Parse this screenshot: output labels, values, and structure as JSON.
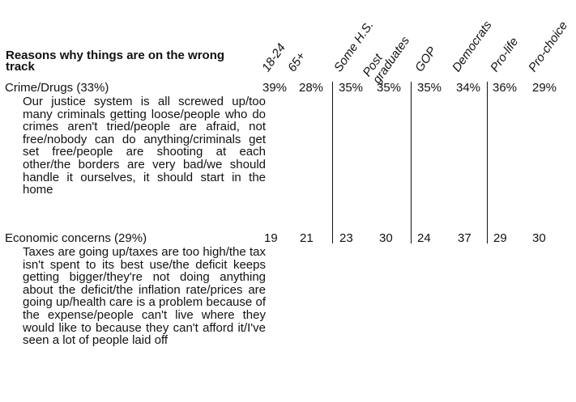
{
  "title": "Reasons why things are on the wrong track",
  "columns": [
    "18-24",
    "65+",
    "Some H.S.",
    "Post graduates",
    "GOP",
    "Democrats",
    "Pro-life",
    "Pro-choice"
  ],
  "rows": [
    {
      "label": "Crime/Drugs (33%)",
      "description": "Our justice system is all screwed up/too many criminals getting loose/people who do crimes aren't tried/people are afraid, not free/nobody can do anything/criminals get set free/people are shooting at each other/the borders are very bad/we should handle it ourselves, it should start in the home",
      "values": [
        "39%",
        "28%",
        "35%",
        "35%",
        "35%",
        "34%",
        "36%",
        "29%"
      ]
    },
    {
      "label": "Economic concerns (29%)",
      "description": "Taxes are going up/taxes are too high/the tax isn't spent to its best use/the deficit keeps getting bigger/they're not doing anything about the deficit/the inflation rate/prices are going up/health care is a problem because of the expense/people can't live where they would like to because they can't afford it/I've seen a lot of people laid off",
      "values": [
        "19",
        "21",
        "23",
        "30",
        "24",
        "37",
        "29",
        "30"
      ]
    }
  ]
}
